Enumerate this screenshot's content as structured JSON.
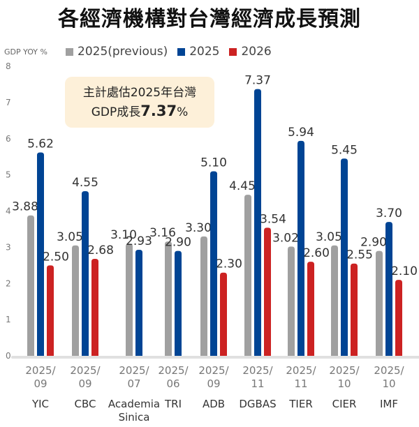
{
  "chart_data": {
    "type": "bar",
    "title": "各經濟機構對台灣經濟成長預測",
    "ylabel": "GDP YOY %",
    "ylim": [
      0,
      8
    ],
    "yticks": [
      "0",
      "1",
      "2",
      "3",
      "4",
      "5",
      "6",
      "7",
      "8"
    ],
    "legend_position": "top",
    "categories": [
      "YIC",
      "CBC",
      "Academia Sinica",
      "TRI",
      "ADB",
      "DGBAS",
      "TIER",
      "CIER",
      "IMF"
    ],
    "dates": [
      "2025/ 09",
      "2025/ 09",
      "2025/ 07",
      "2025/ 06",
      "2025/ 09",
      "2025/ 11",
      "2025/ 11",
      "2025/ 10",
      "2025/ 10"
    ],
    "series": [
      {
        "name": "2025(previous)",
        "color": "#a0a0a0",
        "values": [
          3.88,
          3.05,
          3.1,
          3.16,
          3.3,
          4.45,
          3.02,
          3.05,
          2.9
        ],
        "labels": [
          "3.88",
          "3.05",
          "3.10",
          "3.16",
          "3.30",
          "4.45",
          "3.02",
          "3.05",
          "2.90"
        ]
      },
      {
        "name": "2025",
        "color": "#004494",
        "values": [
          5.62,
          4.55,
          2.93,
          2.9,
          5.1,
          7.37,
          5.94,
          5.45,
          3.7
        ],
        "labels": [
          "5.62",
          "4.55",
          "2.93",
          "2.90",
          "5.10",
          "7.37",
          "5.94",
          "5.45",
          "3.70"
        ]
      },
      {
        "name": "2026",
        "color": "#cc2222",
        "values": [
          2.5,
          2.68,
          null,
          null,
          2.3,
          3.54,
          2.6,
          2.55,
          2.1
        ],
        "labels": [
          "2.50",
          "2.68",
          null,
          null,
          "2.30",
          "3.54",
          "2.60",
          "2.55",
          "2.10"
        ]
      }
    ],
    "annotation": {
      "line1": "主計處估2025年台灣",
      "line2_prefix": "GDP成長",
      "line2_value": "7.37",
      "line2_suffix": "%"
    }
  }
}
